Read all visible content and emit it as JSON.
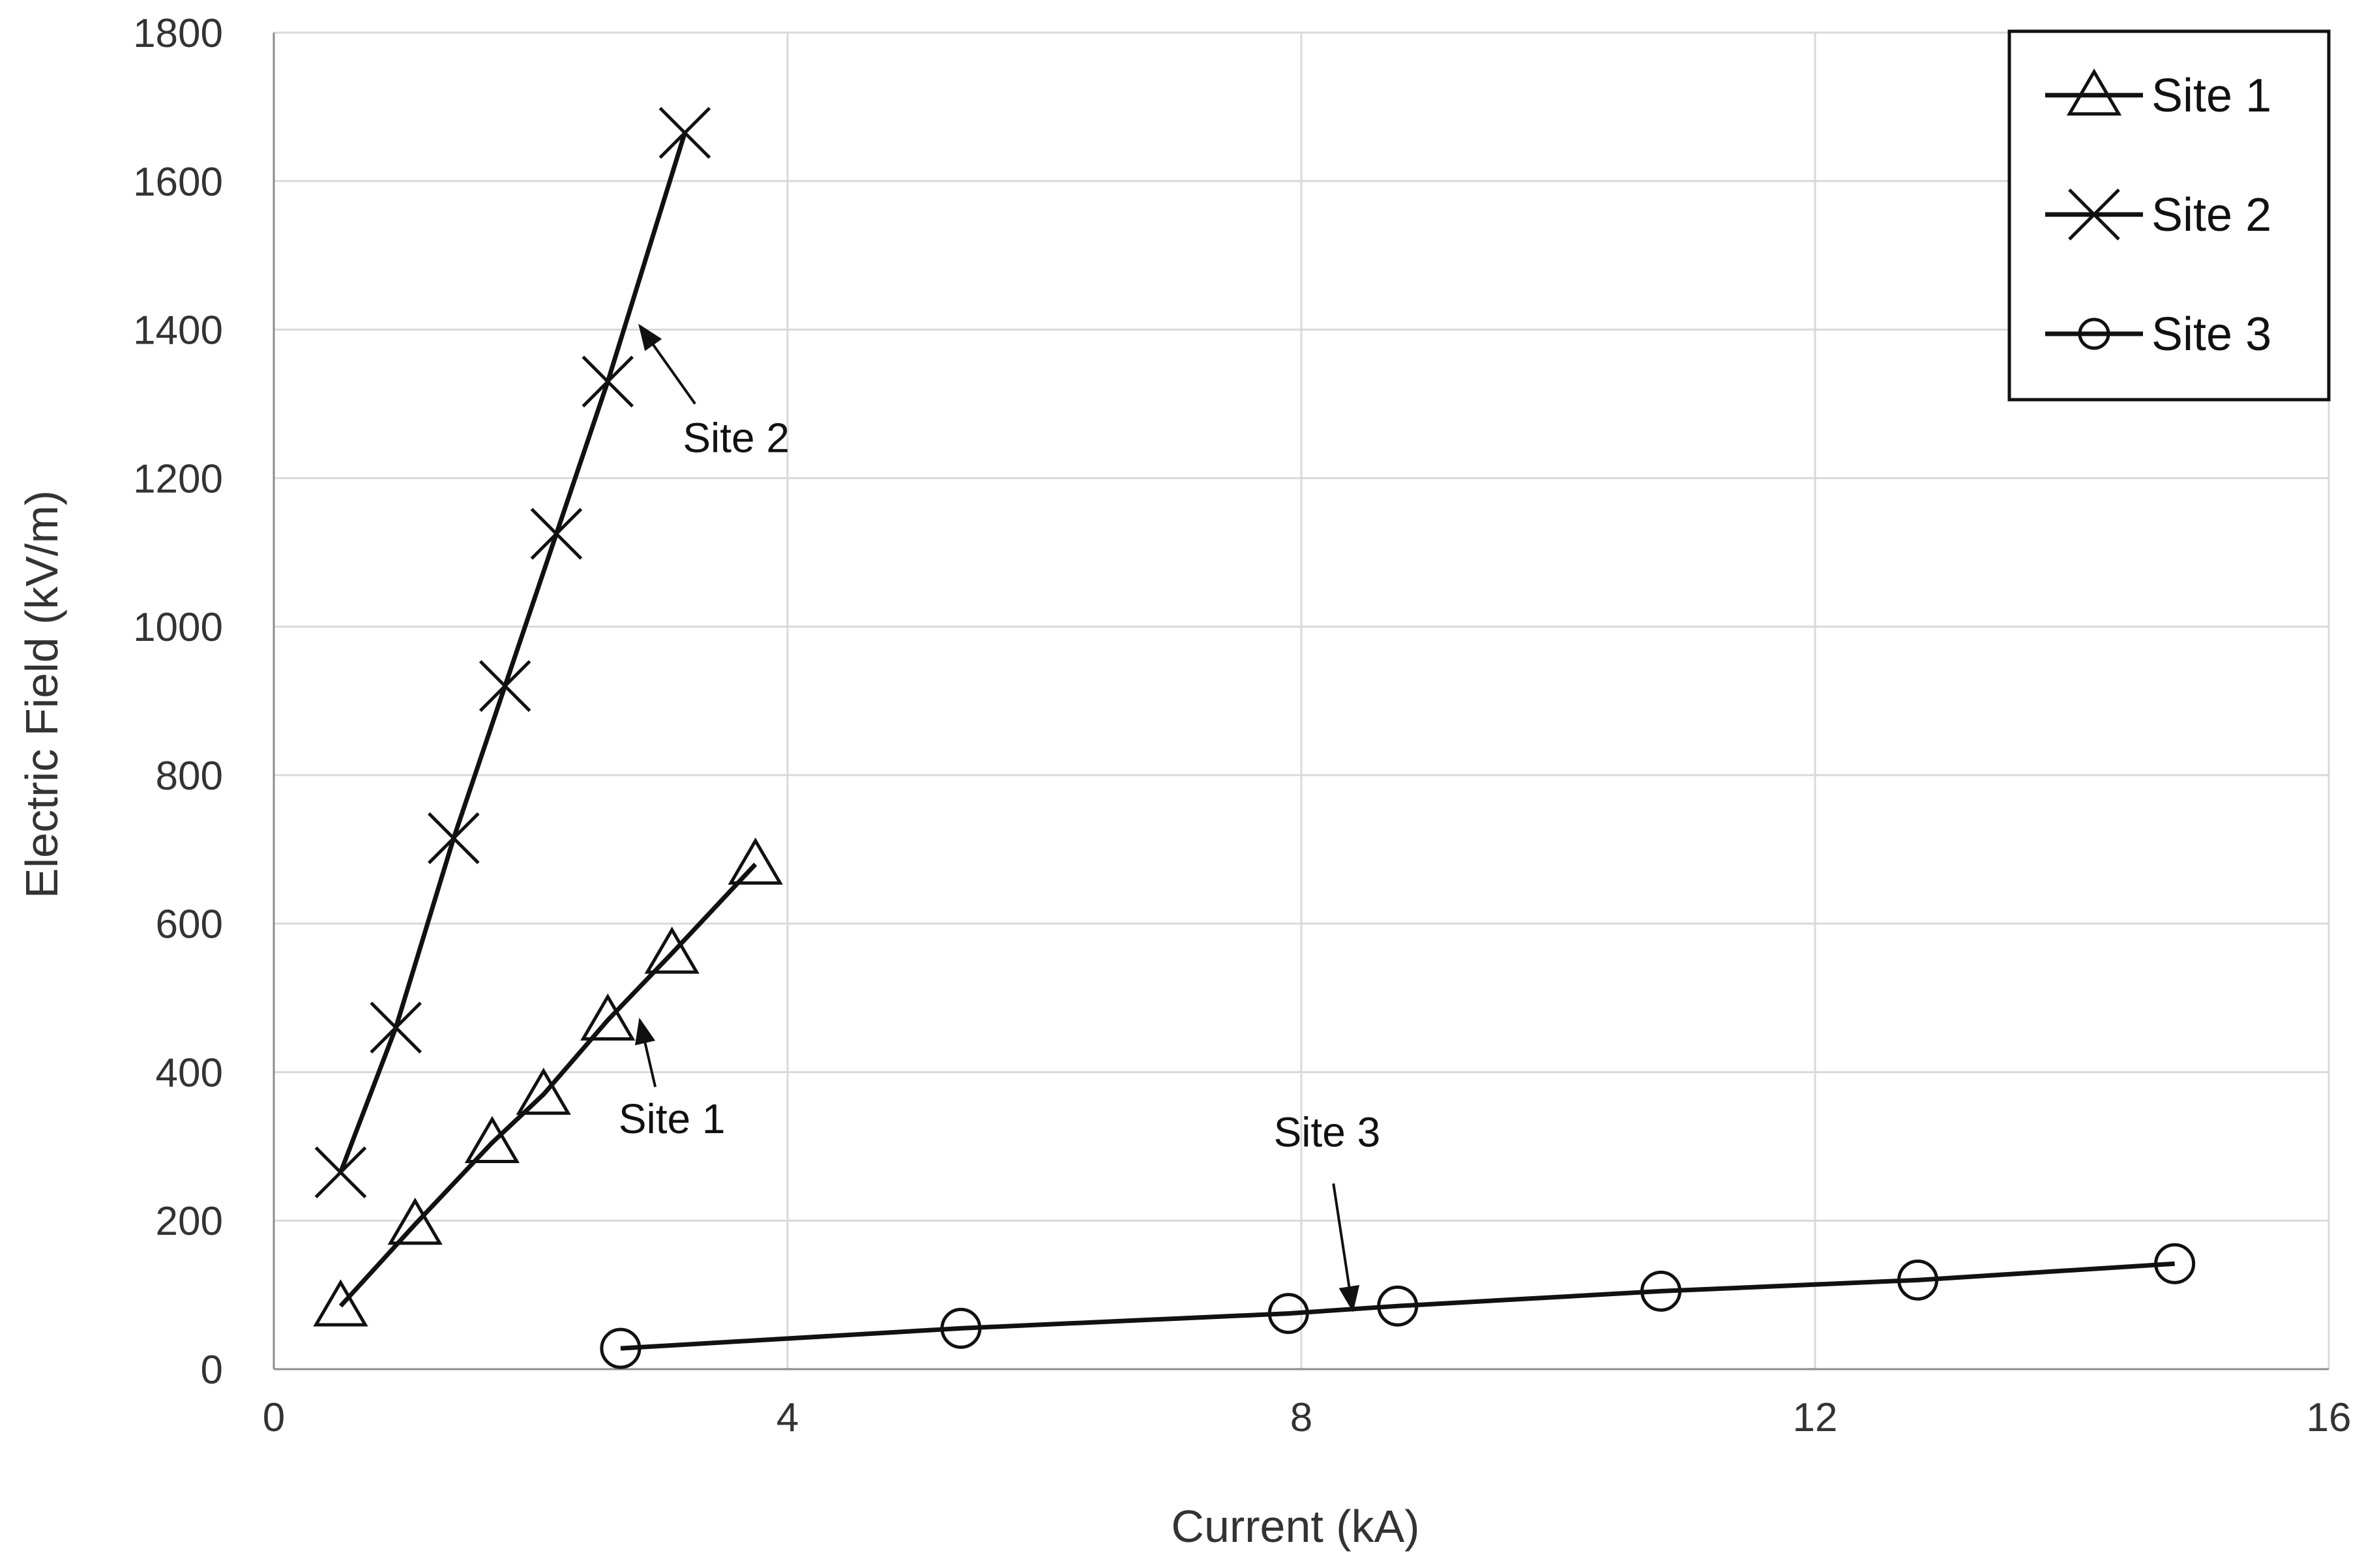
{
  "chart_data": {
    "type": "line",
    "title": "",
    "xlabel": "Current (kA)",
    "ylabel": "Electric Field (kV/m)",
    "xlim": [
      0,
      16
    ],
    "ylim": [
      0,
      1800
    ],
    "xticks": [
      0,
      4,
      8,
      12,
      16
    ],
    "yticks": [
      0,
      200,
      400,
      600,
      800,
      1000,
      1200,
      1400,
      1600,
      1800
    ],
    "grid": true,
    "legend_position": "top-right",
    "series": [
      {
        "name": "Site 1",
        "marker": "triangle",
        "x": [
          0.52,
          1.1,
          1.7,
          2.1,
          2.6,
          3.1,
          3.75
        ],
        "y": [
          85,
          195,
          305,
          370,
          470,
          560,
          680
        ]
      },
      {
        "name": "Site 2",
        "marker": "x",
        "x": [
          0.52,
          0.95,
          1.4,
          1.8,
          2.2,
          2.6,
          3.2
        ],
        "y": [
          265,
          460,
          715,
          920,
          1125,
          1330,
          1665
        ]
      },
      {
        "name": "Site 3",
        "marker": "circle",
        "x": [
          2.7,
          5.35,
          7.9,
          8.75,
          10.8,
          12.8,
          14.8
        ],
        "y": [
          28,
          55,
          75,
          85,
          105,
          120,
          142
        ]
      }
    ],
    "annotations": [
      {
        "text": "Site 2",
        "label_x": 3.6,
        "label_y": 1235,
        "arrow_from": [
          3.28,
          1300
        ],
        "arrow_to": [
          2.85,
          1405
        ]
      },
      {
        "text": "Site 1",
        "label_x": 3.1,
        "label_y": 318,
        "arrow_from": [
          2.97,
          380
        ],
        "arrow_to": [
          2.85,
          470
        ]
      },
      {
        "text": "Site 3",
        "label_x": 8.2,
        "label_y": 300,
        "arrow_from": [
          8.25,
          250
        ],
        "arrow_to": [
          8.4,
          80
        ]
      }
    ]
  }
}
